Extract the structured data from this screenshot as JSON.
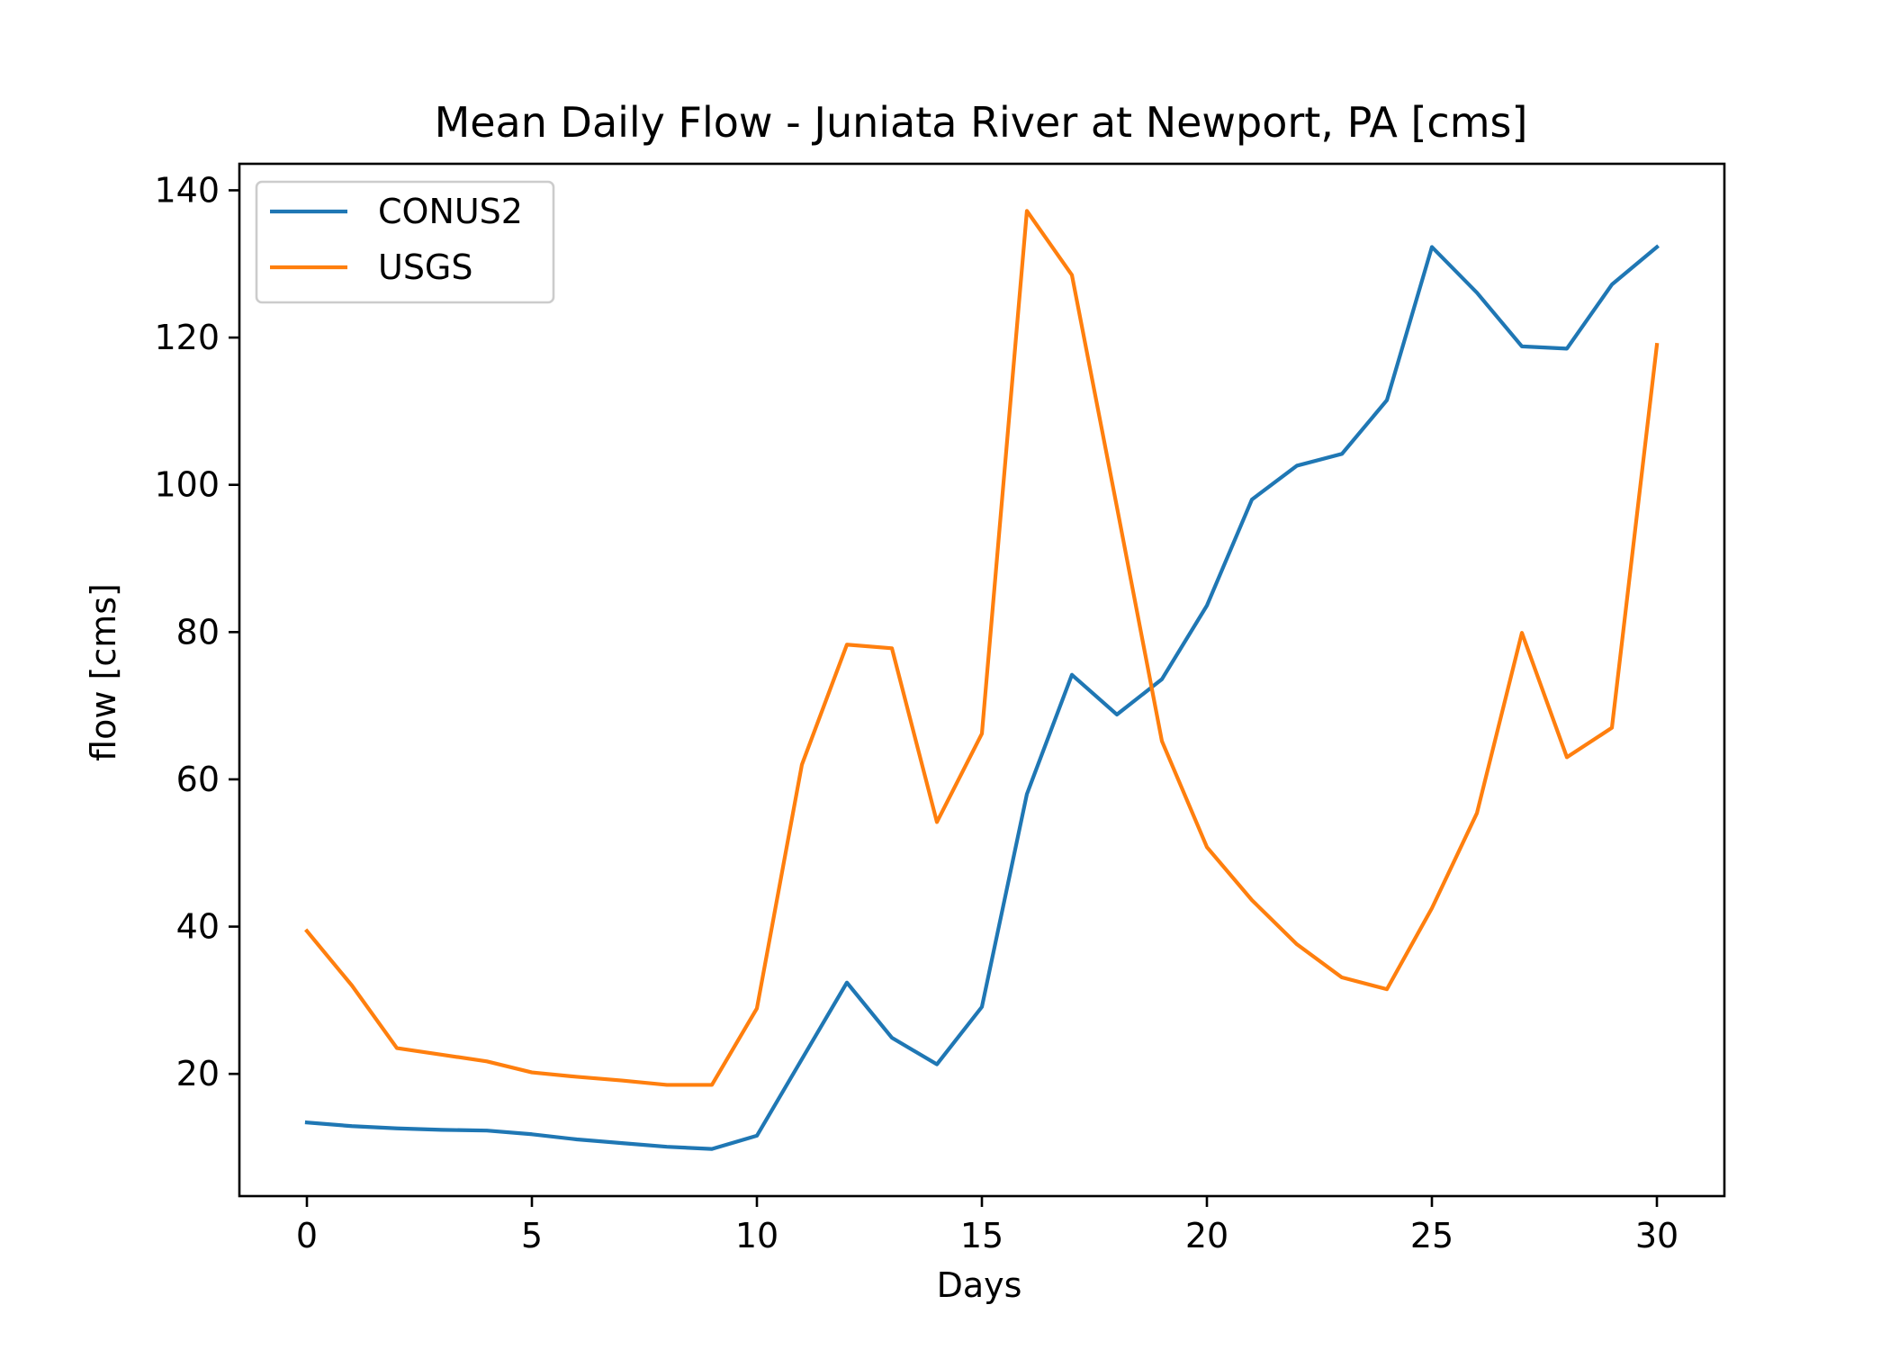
{
  "chart_data": {
    "type": "line",
    "title": "Mean Daily Flow - Juniata River at Newport, PA [cms]",
    "xlabel": "Days",
    "ylabel": "flow [cms]",
    "xlim": [
      -1.5,
      31.5
    ],
    "ylim": [
      3.4,
      143.6
    ],
    "xticks": [
      0,
      5,
      10,
      15,
      20,
      25,
      30
    ],
    "yticks": [
      20,
      40,
      60,
      80,
      100,
      120,
      140
    ],
    "grid": false,
    "legend": "top-left",
    "x": [
      0,
      1,
      2,
      3,
      4,
      5,
      6,
      7,
      8,
      9,
      10,
      11,
      12,
      13,
      14,
      15,
      16,
      17,
      18,
      19,
      20,
      21,
      22,
      23,
      24,
      25,
      26,
      27,
      28,
      29,
      30
    ],
    "series": [
      {
        "name": "CONUS2",
        "color": "#1f77b4",
        "values": [
          13.4,
          12.9,
          12.6,
          12.4,
          12.3,
          11.8,
          11.1,
          10.6,
          10.1,
          9.8,
          11.6,
          22.0,
          32.4,
          24.9,
          21.3,
          29.1,
          58.0,
          74.2,
          68.8,
          73.6,
          83.6,
          98.0,
          102.6,
          104.2,
          111.5,
          132.3,
          126.1,
          118.8,
          118.5,
          127.2,
          132.3
        ]
      },
      {
        "name": "USGS",
        "color": "#ff7f0e",
        "values": [
          39.4,
          32.0,
          23.5,
          22.6,
          21.7,
          20.2,
          19.6,
          19.1,
          18.5,
          18.5,
          28.9,
          62.0,
          78.3,
          77.8,
          54.2,
          66.2,
          137.2,
          128.5,
          97.0,
          65.2,
          50.8,
          43.6,
          37.6,
          33.1,
          31.5,
          42.5,
          55.4,
          79.9,
          63.0,
          67.0,
          119.0
        ]
      }
    ]
  }
}
